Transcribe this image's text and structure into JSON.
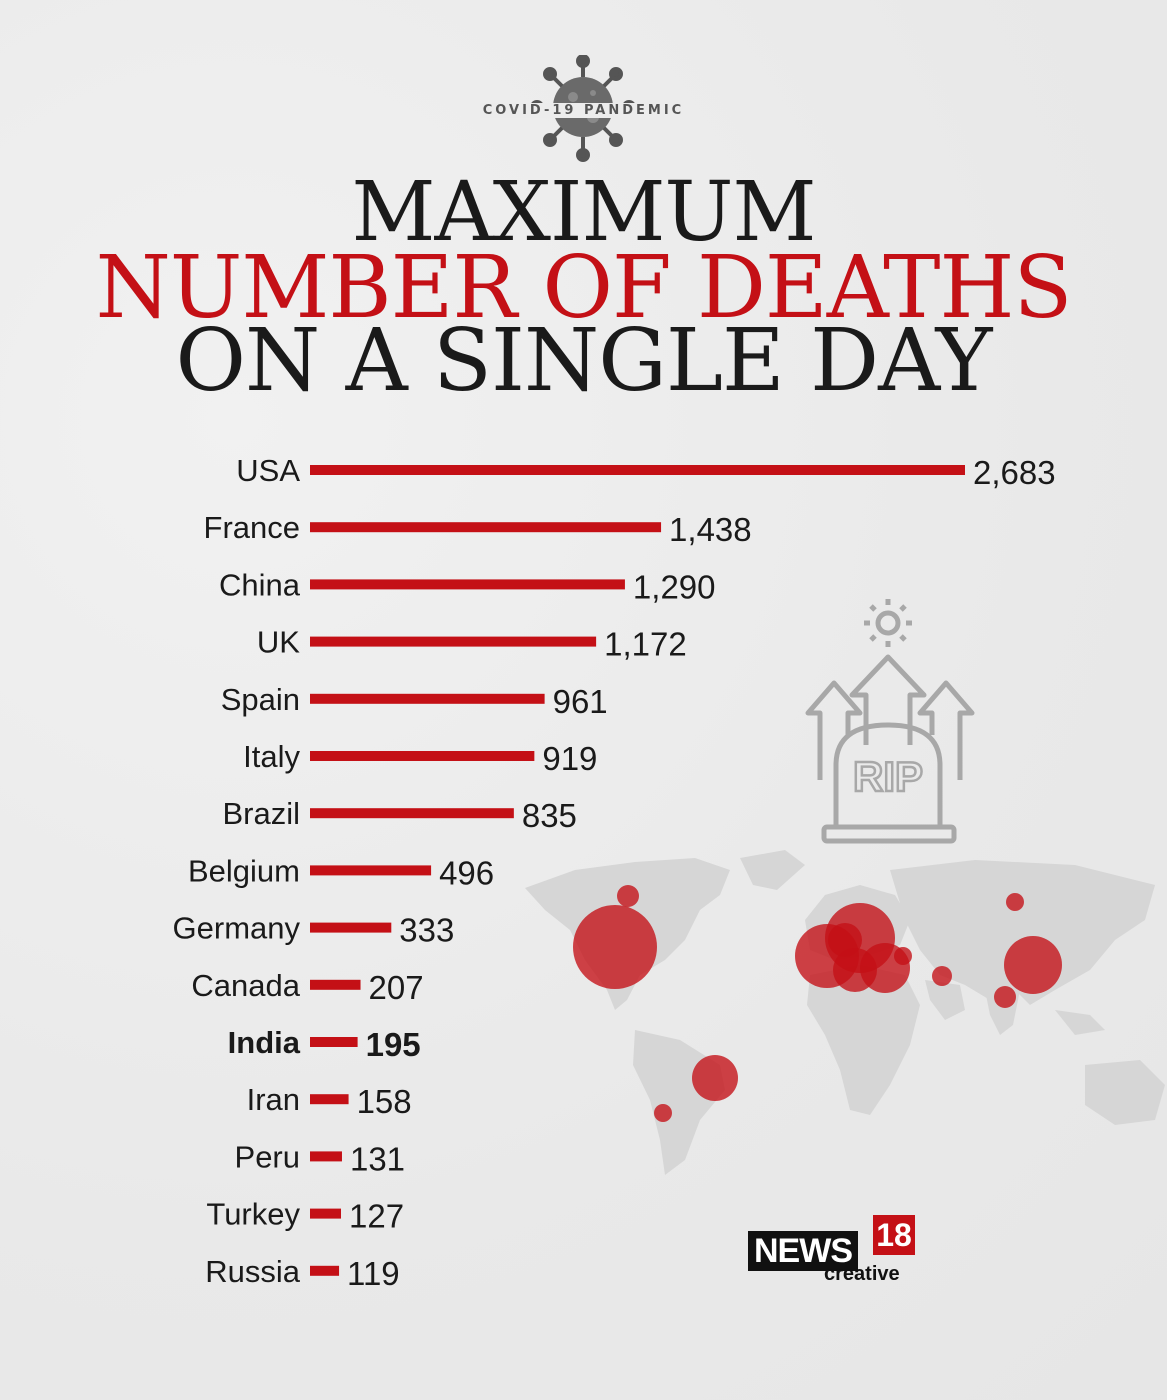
{
  "header": {
    "kicker": "COVID-19 PANDEMIC",
    "title_line1": "MAXIMUM",
    "title_line2": "NUMBER OF DEATHS",
    "title_line3": "ON A SINGLE DAY"
  },
  "chart_data": {
    "type": "bar",
    "orientation": "horizontal",
    "categories": [
      "USA",
      "France",
      "China",
      "UK",
      "Spain",
      "Italy",
      "Brazil",
      "Belgium",
      "Germany",
      "Canada",
      "India",
      "Iran",
      "Peru",
      "Turkey",
      "Russia"
    ],
    "values": [
      2683,
      1438,
      1290,
      1172,
      961,
      919,
      835,
      496,
      333,
      207,
      195,
      158,
      131,
      127,
      119
    ],
    "value_labels": [
      "2,683",
      "1,438",
      "1,290",
      "1,172",
      "961",
      "919",
      "835",
      "496",
      "333",
      "207",
      "195",
      "158",
      "131",
      "127",
      "119"
    ],
    "highlight": "India",
    "bar_color": "#c41016",
    "xlim": [
      0,
      2683
    ]
  },
  "graphics": {
    "rip_label": "RIP"
  },
  "branding": {
    "logo_news": "NEWS",
    "logo_number": "18",
    "logo_sub": "creative"
  },
  "colors": {
    "accent": "#c41016",
    "text": "#1a1a1a",
    "map": "#d6d6d6",
    "icon_gray": "#a8a8a8"
  }
}
